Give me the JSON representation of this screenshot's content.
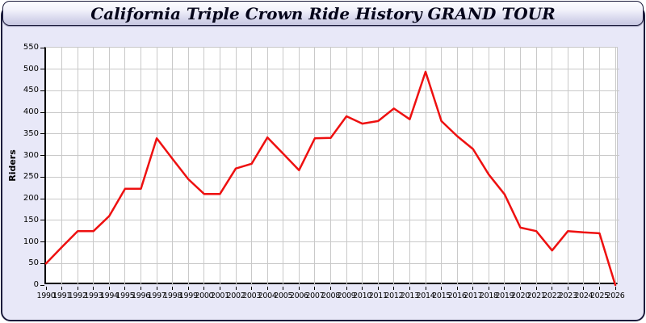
{
  "title_bar": {
    "title": "California Triple Crown Ride History GRAND TOUR"
  },
  "colors": {
    "panel_background": "#e8e8f8",
    "panel_border": "#1c1c3c",
    "plot_background": "#ffffff",
    "gridline": "#c9c9c9",
    "axis": "#000000",
    "line": "#ee1010"
  },
  "chart_data": {
    "type": "line",
    "title": "California Triple Crown Ride History GRAND TOUR",
    "xlabel": "",
    "ylabel": "Riders",
    "x": [
      1990,
      1991,
      1992,
      1993,
      1994,
      1995,
      1996,
      1997,
      1998,
      1999,
      2000,
      2001,
      2002,
      2003,
      2004,
      2005,
      2006,
      2007,
      2008,
      2009,
      2010,
      2011,
      2012,
      2013,
      2014,
      2015,
      2016,
      2017,
      2018,
      2019,
      2020,
      2021,
      2022,
      2023,
      2024,
      2025,
      2026
    ],
    "values": [
      50,
      88,
      125,
      125,
      160,
      223,
      223,
      340,
      292,
      245,
      211,
      211,
      270,
      281,
      342,
      304,
      266,
      340,
      341,
      391,
      374,
      380,
      409,
      384,
      494,
      380,
      345,
      315,
      256,
      210,
      133,
      125,
      80,
      125,
      122,
      120,
      0
    ],
    "ylim": [
      0,
      550
    ],
    "yticks": [
      0,
      50,
      100,
      150,
      200,
      250,
      300,
      350,
      400,
      450,
      500,
      550
    ],
    "grid": true,
    "legend": "none",
    "line_color": "#ee1010"
  }
}
